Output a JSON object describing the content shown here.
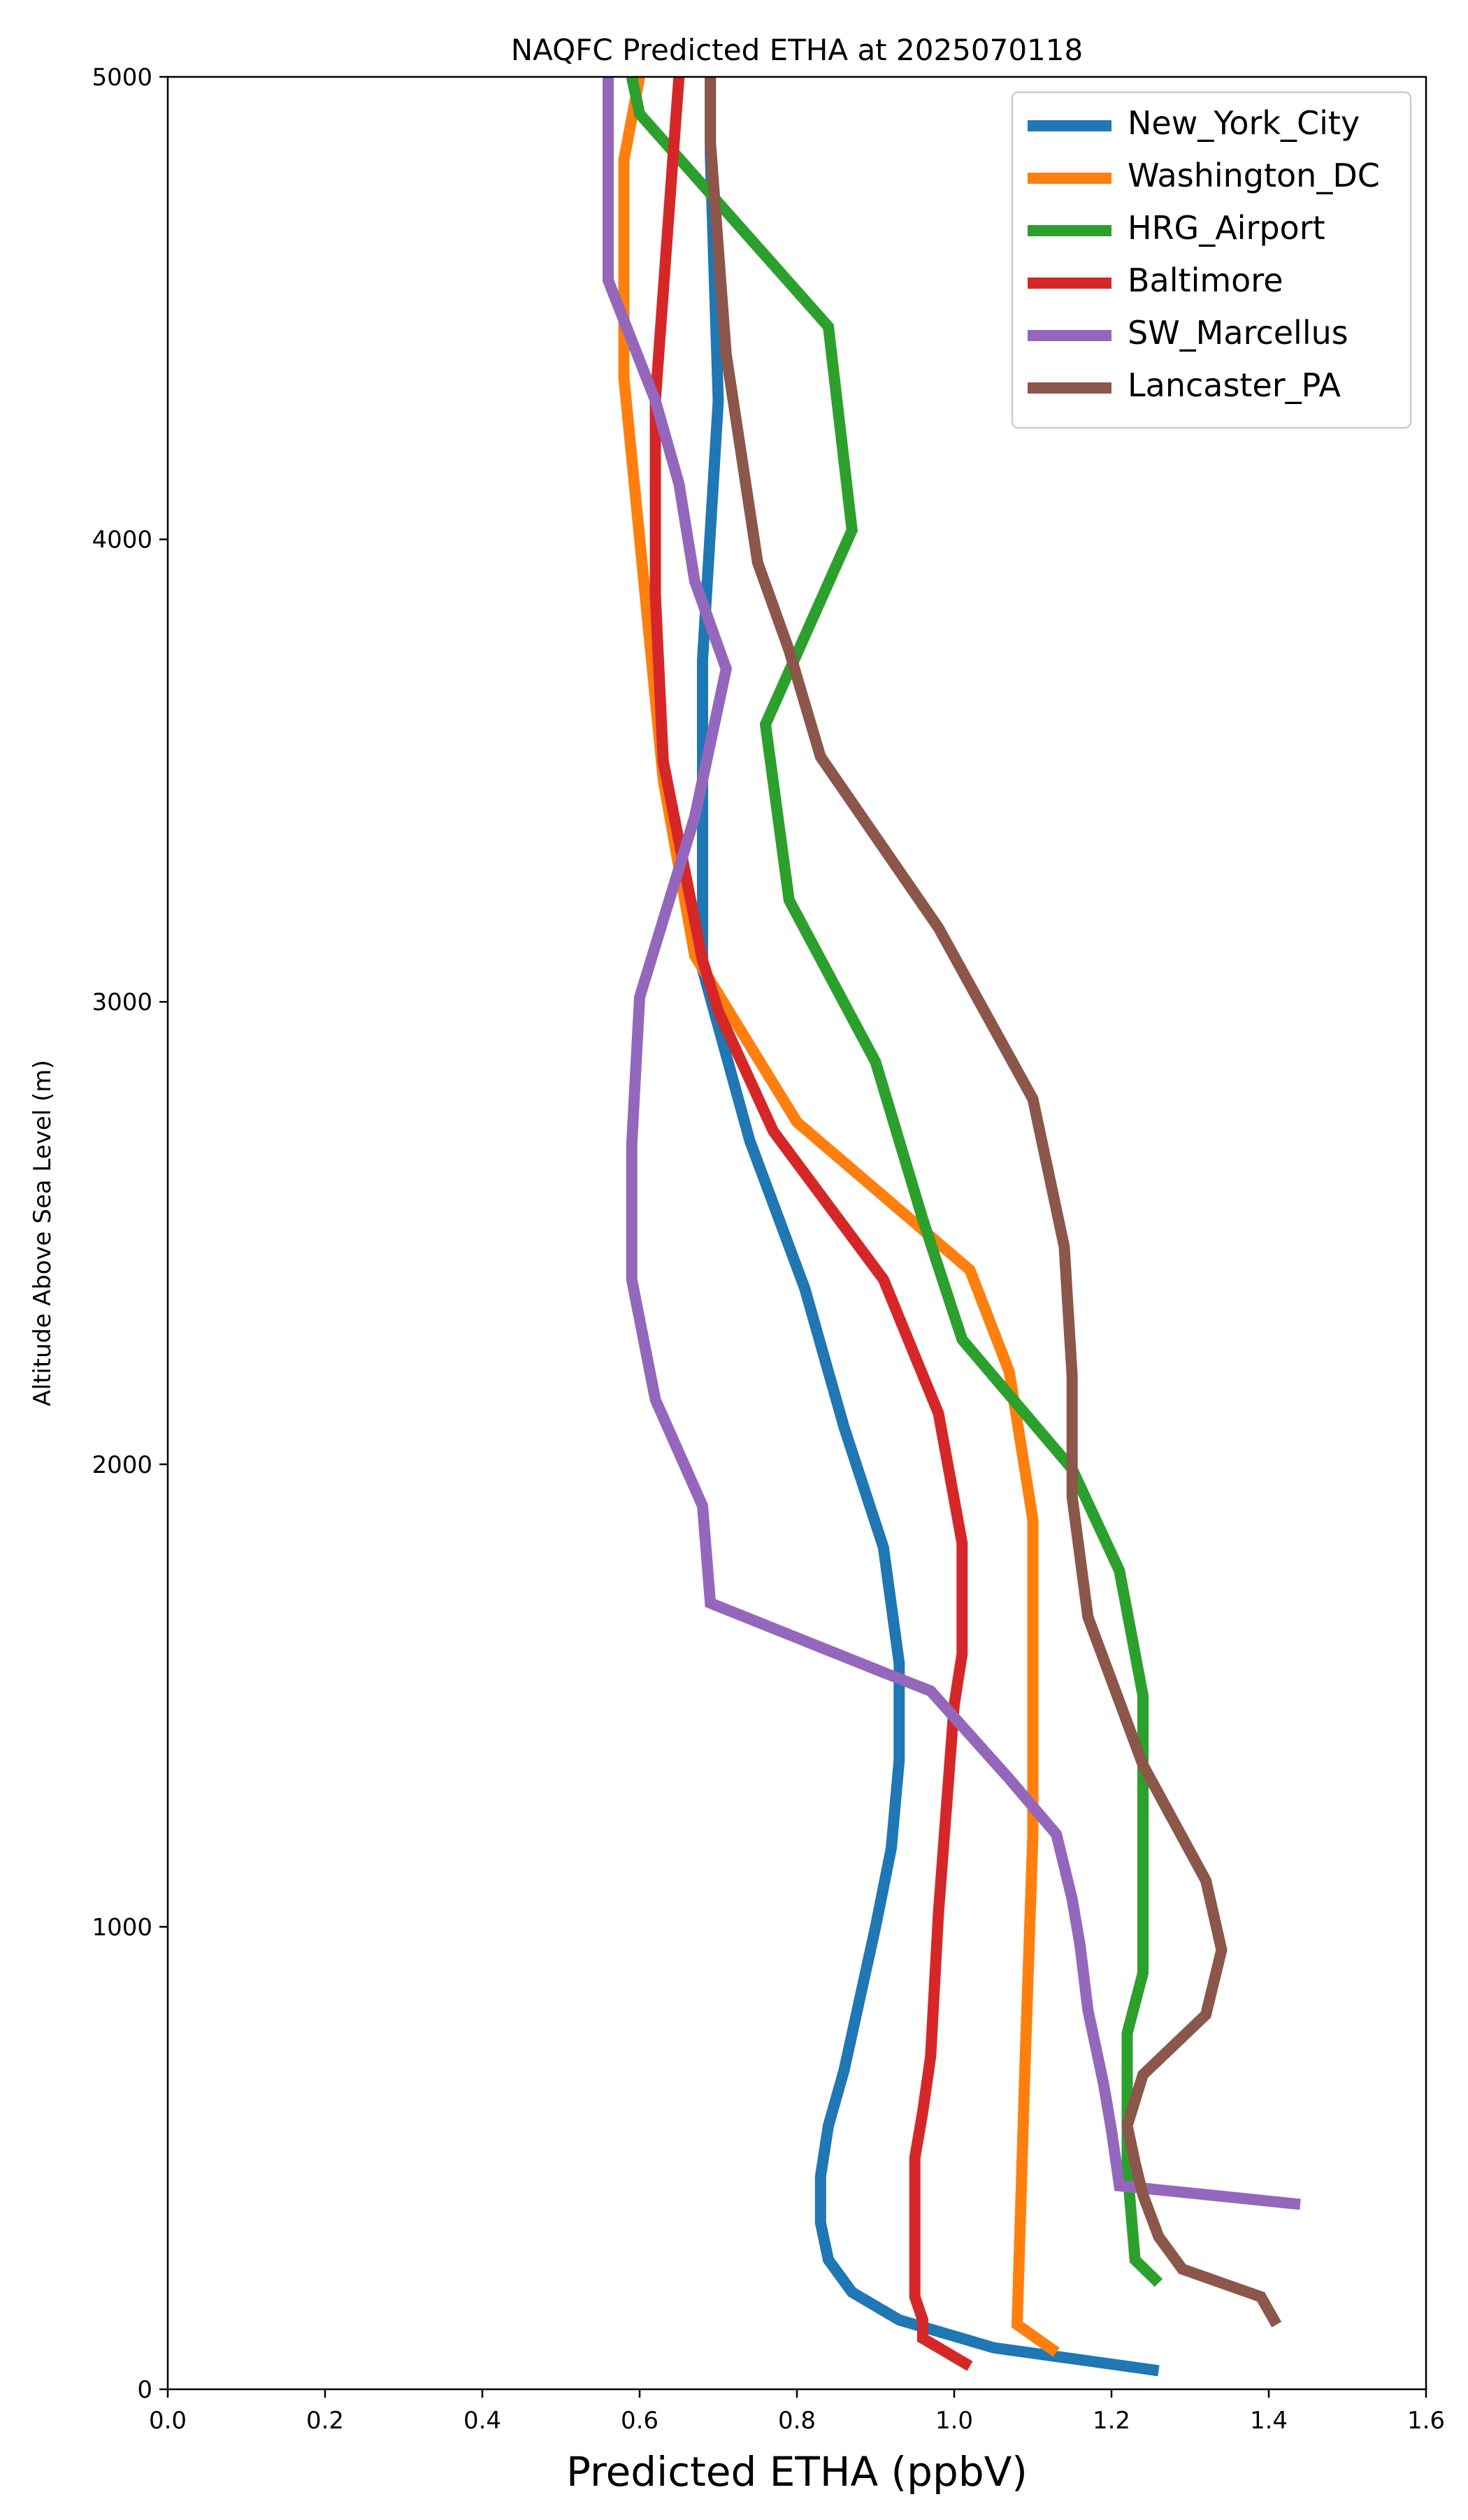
{
  "chart_data": {
    "type": "line",
    "title": "NAQFC Predicted ETHA at 2025070118",
    "xlabel": "Predicted ETHA (ppbV)",
    "ylabel": "Altitude Above Sea Level (m)",
    "xlim": [
      0.0,
      1.6
    ],
    "ylim": [
      0,
      5000
    ],
    "xticks": [
      "0.0",
      "0.2",
      "0.4",
      "0.6",
      "0.8",
      "1.0",
      "1.2",
      "1.4",
      "1.6"
    ],
    "yticks": [
      "0",
      "1000",
      "2000",
      "3000",
      "4000",
      "5000"
    ],
    "grid": false,
    "legend_position": "top-right",
    "series": [
      {
        "name": "New_York_City",
        "color": "#1f77b4",
        "points": [
          [
            1.26,
            40
          ],
          [
            1.05,
            90
          ],
          [
            0.93,
            150
          ],
          [
            0.87,
            210
          ],
          [
            0.84,
            280
          ],
          [
            0.83,
            360
          ],
          [
            0.83,
            460
          ],
          [
            0.84,
            570
          ],
          [
            0.86,
            690
          ],
          [
            0.9,
            1000
          ],
          [
            0.92,
            1170
          ],
          [
            0.93,
            1360
          ],
          [
            0.93,
            1570
          ],
          [
            0.91,
            1820
          ],
          [
            0.86,
            2080
          ],
          [
            0.81,
            2380
          ],
          [
            0.74,
            2700
          ],
          [
            0.68,
            3070
          ],
          [
            0.68,
            3480
          ],
          [
            0.68,
            3740
          ],
          [
            0.7,
            4300
          ],
          [
            0.69,
            4830
          ],
          [
            0.69,
            5000
          ]
        ]
      },
      {
        "name": "Washington_DC",
        "color": "#ff7f0e",
        "points": [
          [
            1.13,
            80
          ],
          [
            1.08,
            140
          ],
          [
            1.09,
            700
          ],
          [
            1.1,
            1200
          ],
          [
            1.1,
            1880
          ],
          [
            1.07,
            2200
          ],
          [
            1.02,
            2420
          ],
          [
            0.8,
            2740
          ],
          [
            0.67,
            3100
          ],
          [
            0.63,
            3480
          ],
          [
            0.58,
            4350
          ],
          [
            0.58,
            4820
          ],
          [
            0.6,
            5000
          ]
        ]
      },
      {
        "name": "HRG_Airport",
        "color": "#2ca02c",
        "points": [
          [
            1.26,
            230
          ],
          [
            1.23,
            280
          ],
          [
            1.22,
            480
          ],
          [
            1.22,
            770
          ],
          [
            1.24,
            900
          ],
          [
            1.24,
            1500
          ],
          [
            1.21,
            1770
          ],
          [
            1.15,
            1990
          ],
          [
            1.01,
            2270
          ],
          [
            0.96,
            2530
          ],
          [
            0.9,
            2870
          ],
          [
            0.79,
            3220
          ],
          [
            0.76,
            3600
          ],
          [
            0.87,
            4020
          ],
          [
            0.84,
            4460
          ],
          [
            0.6,
            4920
          ],
          [
            0.59,
            5000
          ]
        ]
      },
      {
        "name": "Baltimore",
        "color": "#d62728",
        "points": [
          [
            1.02,
            50
          ],
          [
            0.96,
            110
          ],
          [
            0.96,
            150
          ],
          [
            0.95,
            200
          ],
          [
            0.95,
            500
          ],
          [
            0.96,
            600
          ],
          [
            0.97,
            720
          ],
          [
            0.98,
            1030
          ],
          [
            1.0,
            1480
          ],
          [
            1.01,
            1590
          ],
          [
            1.01,
            1830
          ],
          [
            0.98,
            2110
          ],
          [
            0.91,
            2400
          ],
          [
            0.77,
            2720
          ],
          [
            0.7,
            2980
          ],
          [
            0.68,
            3090
          ],
          [
            0.63,
            3520
          ],
          [
            0.62,
            3880
          ],
          [
            0.62,
            4300
          ],
          [
            0.64,
            4770
          ],
          [
            0.65,
            5000
          ]
        ]
      },
      {
        "name": "SW_Marcellus",
        "color": "#9467bd",
        "points": [
          [
            1.44,
            400
          ],
          [
            1.21,
            440
          ],
          [
            1.2,
            560
          ],
          [
            1.19,
            660
          ],
          [
            1.17,
            820
          ],
          [
            1.16,
            960
          ],
          [
            1.15,
            1060
          ],
          [
            1.13,
            1200
          ],
          [
            1.07,
            1320
          ],
          [
            0.97,
            1510
          ],
          [
            0.91,
            1550
          ],
          [
            0.69,
            1700
          ],
          [
            0.68,
            1910
          ],
          [
            0.62,
            2140
          ],
          [
            0.59,
            2400
          ],
          [
            0.59,
            2690
          ],
          [
            0.6,
            3010
          ],
          [
            0.67,
            3400
          ],
          [
            0.71,
            3720
          ],
          [
            0.67,
            3910
          ],
          [
            0.65,
            4120
          ],
          [
            0.62,
            4300
          ],
          [
            0.56,
            4560
          ],
          [
            0.56,
            5000
          ]
        ]
      },
      {
        "name": "Lancaster_PA",
        "color": "#8c564b",
        "points": [
          [
            1.41,
            140
          ],
          [
            1.39,
            200
          ],
          [
            1.29,
            260
          ],
          [
            1.26,
            330
          ],
          [
            1.24,
            420
          ],
          [
            1.23,
            490
          ],
          [
            1.22,
            570
          ],
          [
            1.24,
            680
          ],
          [
            1.32,
            810
          ],
          [
            1.34,
            950
          ],
          [
            1.32,
            1100
          ],
          [
            1.24,
            1350
          ],
          [
            1.17,
            1670
          ],
          [
            1.15,
            1930
          ],
          [
            1.15,
            2190
          ],
          [
            1.14,
            2470
          ],
          [
            1.1,
            2790
          ],
          [
            0.98,
            3160
          ],
          [
            0.83,
            3530
          ],
          [
            0.79,
            3760
          ],
          [
            0.75,
            3950
          ],
          [
            0.71,
            4400
          ],
          [
            0.69,
            4860
          ],
          [
            0.69,
            5000
          ]
        ]
      }
    ]
  }
}
